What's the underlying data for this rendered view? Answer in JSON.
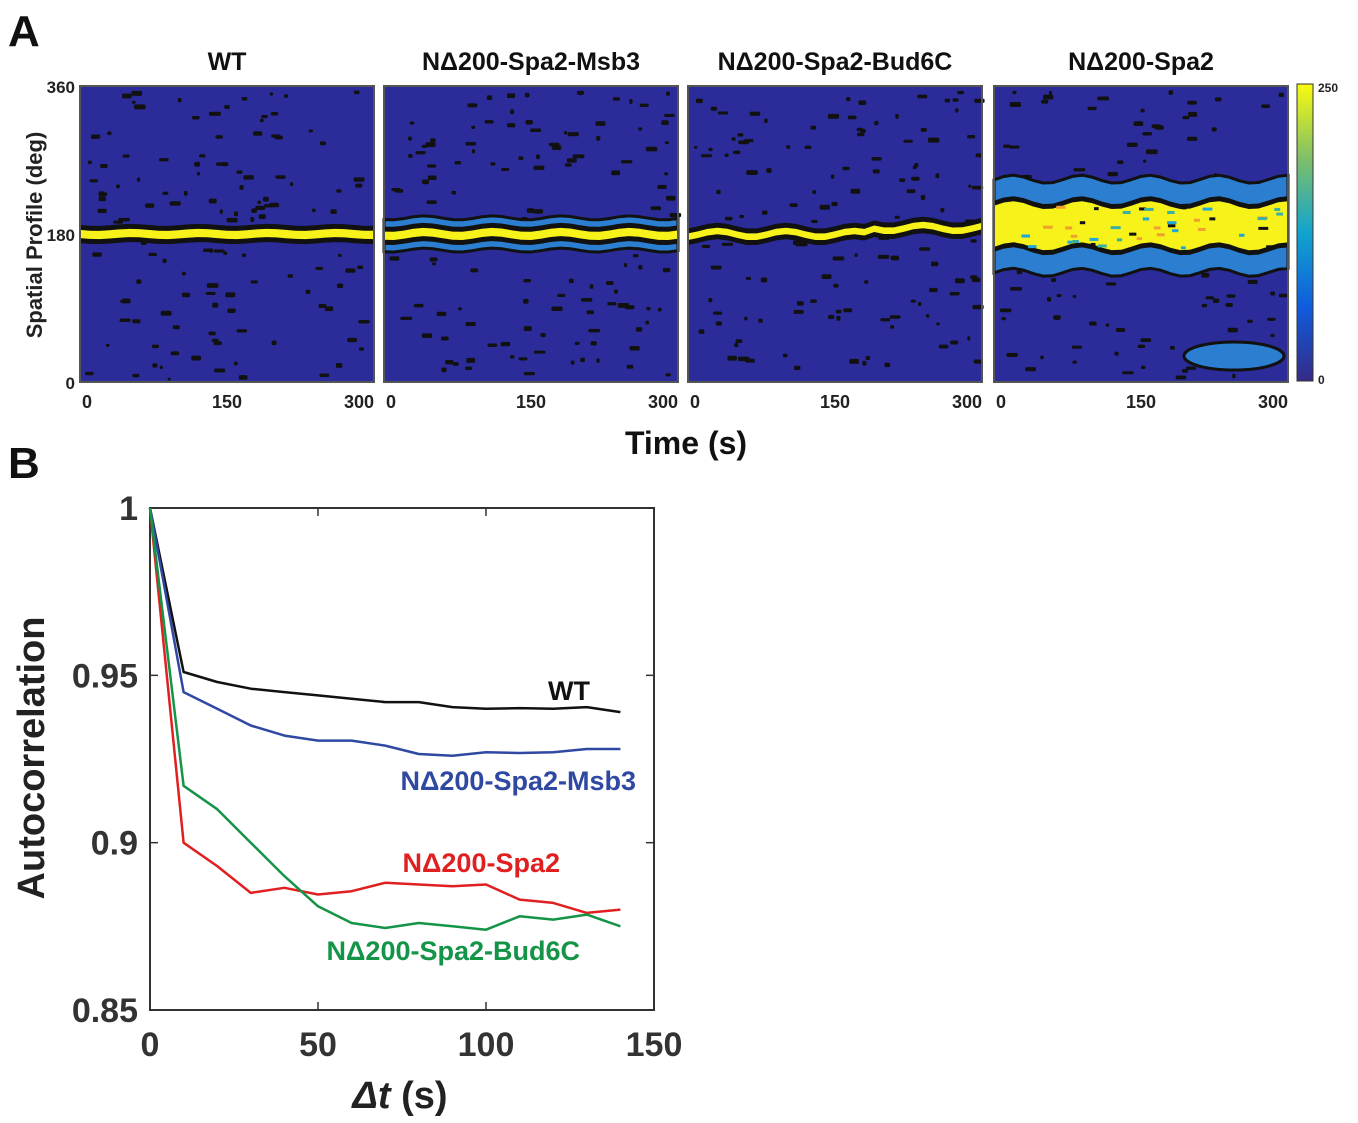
{
  "panels": {
    "a_label": "A",
    "b_label": "B"
  },
  "chart_data": [
    {
      "type": "heatmap",
      "panel": "A",
      "titles": [
        "WT",
        "NΔ200-Spa2-Msb3",
        "NΔ200-Spa2-Bud6C",
        "NΔ200-Spa2"
      ],
      "xlabel": "Time (s)",
      "ylabel": "Spatial Profile (deg)",
      "x_ticks": [
        0,
        150,
        300
      ],
      "y_ticks": [
        0,
        180,
        360
      ],
      "xlim": [
        0,
        300
      ],
      "ylim": [
        0,
        360
      ],
      "colorbar": {
        "min": 0,
        "max": 250,
        "ticks": [
          0,
          250
        ]
      },
      "colors": {
        "low": "#2b2c9a",
        "mid": "#1ea7d8",
        "high": "#f7f21a",
        "contour": "#111111"
      }
    },
    {
      "type": "line",
      "panel": "B",
      "xlabel": "Δt (s)",
      "ylabel": "Autocorrelation",
      "xlim": [
        0,
        150
      ],
      "ylim": [
        0.85,
        1
      ],
      "x_ticks": [
        0,
        50,
        100,
        150
      ],
      "y_ticks": [
        0.85,
        0.9,
        0.95,
        1
      ],
      "x": [
        0,
        10,
        20,
        30,
        40,
        50,
        60,
        70,
        80,
        90,
        100,
        110,
        120,
        130,
        140
      ],
      "series": [
        {
          "name": "WT",
          "color": "#111111",
          "values": [
            1,
            0.951,
            0.948,
            0.946,
            0.945,
            0.944,
            0.943,
            0.942,
            0.942,
            0.9405,
            0.94,
            0.9402,
            0.94,
            0.9405,
            0.939
          ]
        },
        {
          "name": "NΔ200-Spa2-Msb3",
          "color": "#2f48a2",
          "values": [
            1,
            0.945,
            0.94,
            0.935,
            0.932,
            0.9305,
            0.9305,
            0.929,
            0.9265,
            0.926,
            0.927,
            0.9268,
            0.927,
            0.928,
            0.928
          ]
        },
        {
          "name": "NΔ200-Spa2",
          "color": "#e02020",
          "values": [
            1,
            0.9,
            0.893,
            0.885,
            0.8865,
            0.8845,
            0.8855,
            0.888,
            0.8875,
            0.887,
            0.8875,
            0.883,
            0.882,
            0.879,
            0.88
          ]
        },
        {
          "name": "NΔ200-Spa2-Bud6C",
          "color": "#149447",
          "values": [
            1,
            0.917,
            0.91,
            0.9,
            0.89,
            0.881,
            0.876,
            0.8745,
            0.876,
            0.875,
            0.874,
            0.878,
            0.877,
            0.8785,
            0.875
          ]
        }
      ]
    }
  ]
}
